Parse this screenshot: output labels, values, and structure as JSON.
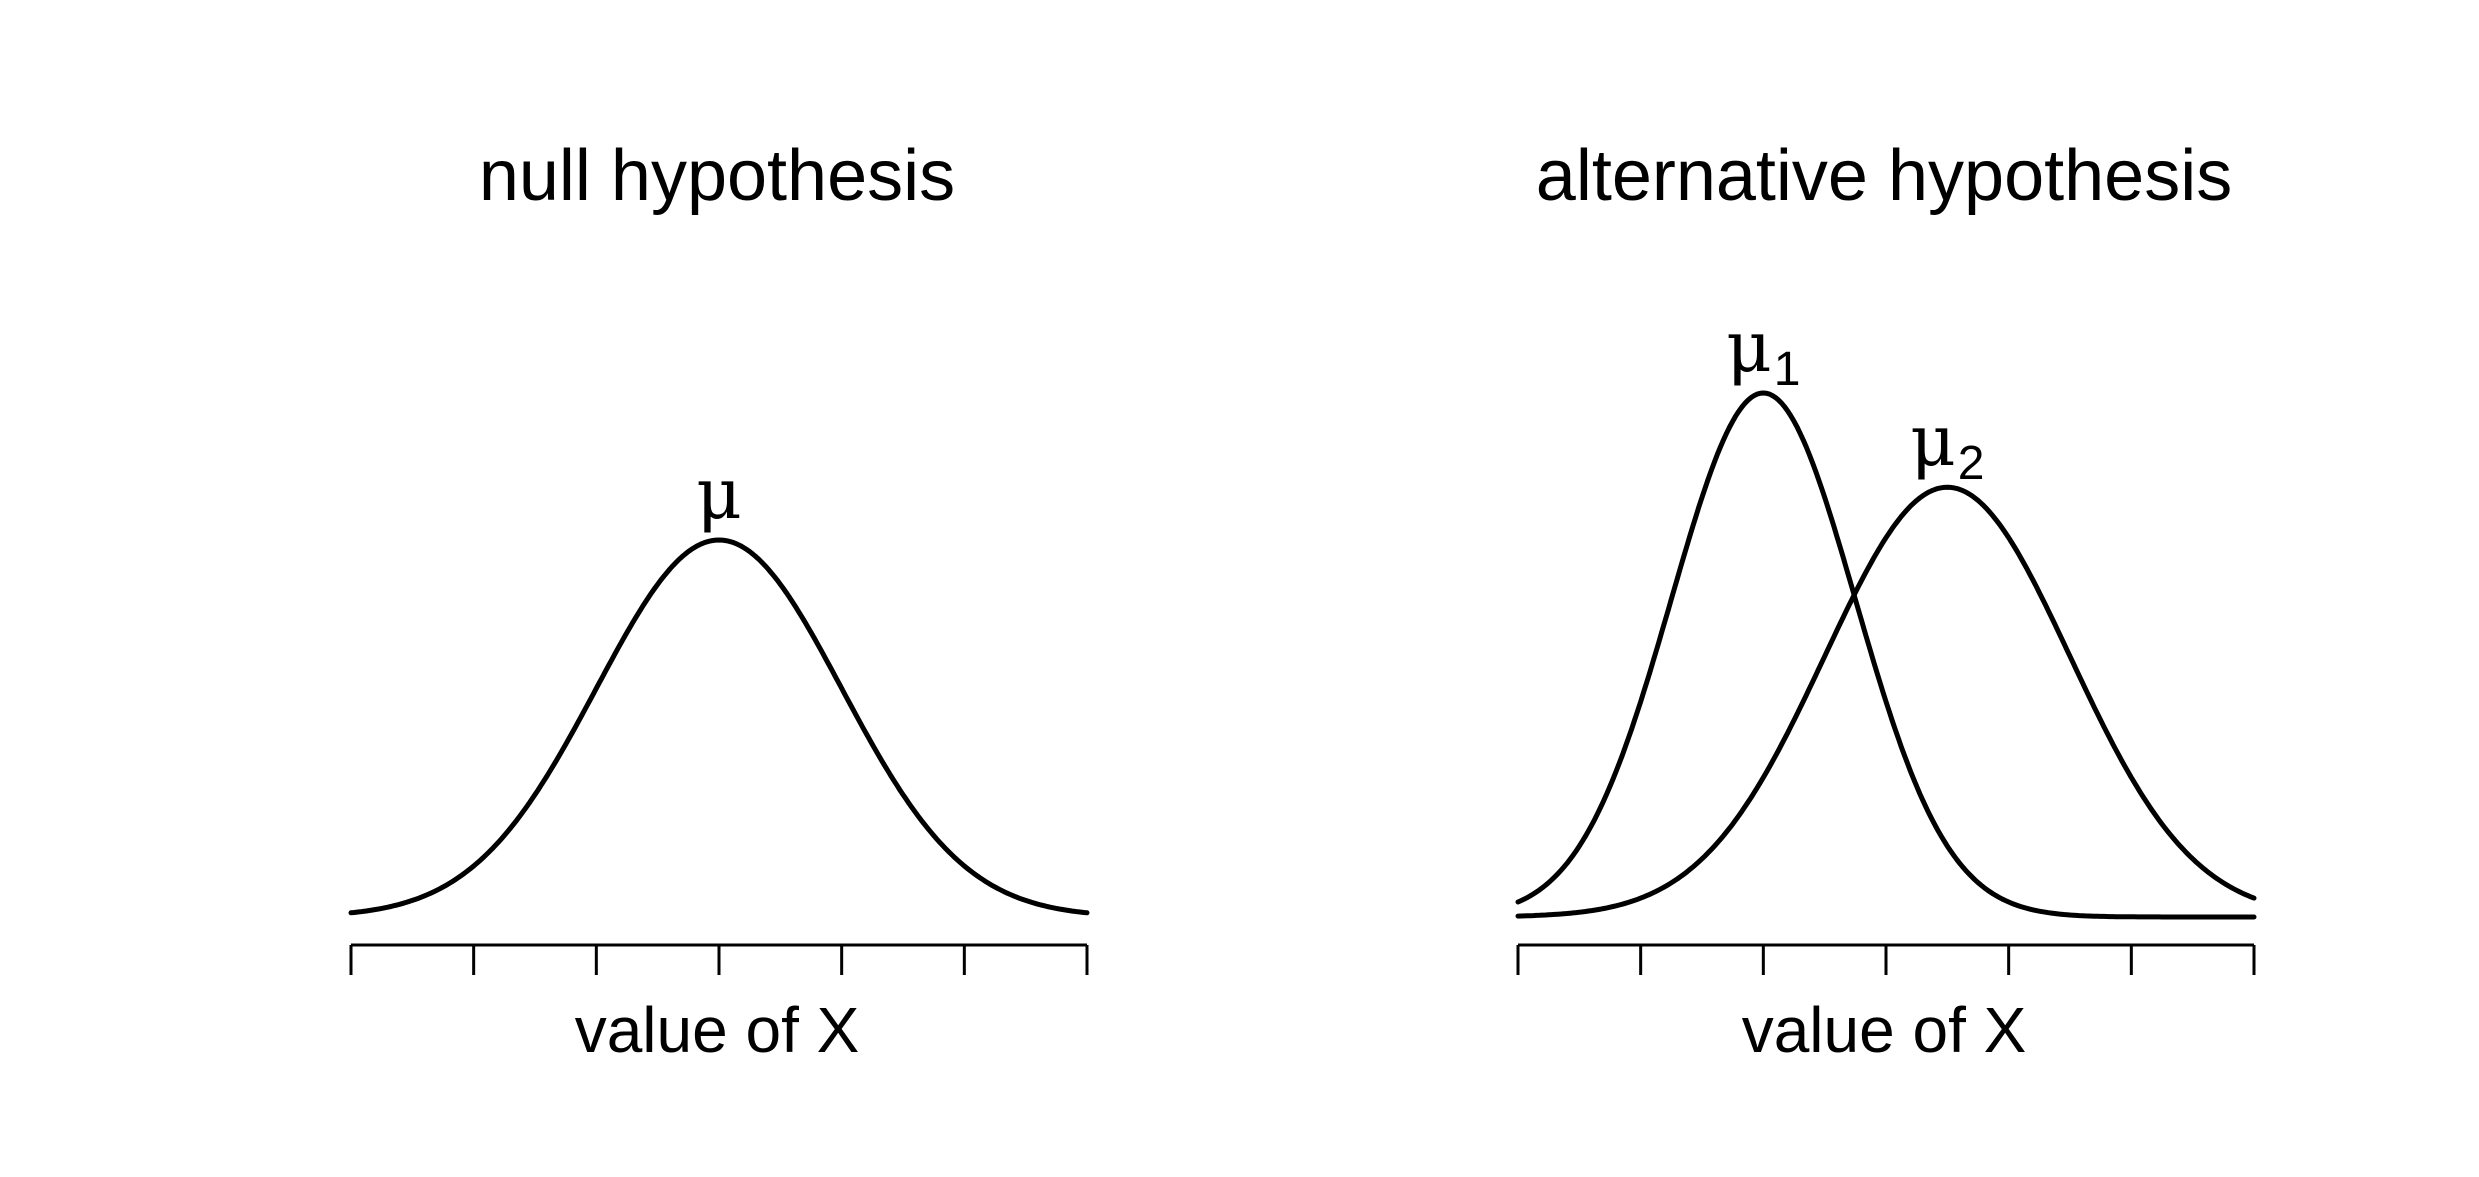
{
  "chart_data": [
    {
      "type": "line",
      "title": "null hypothesis",
      "xlabel": "value of X",
      "ylabel": "",
      "xlim": [
        -3,
        3
      ],
      "x_ticks": 7,
      "tick_labels": false,
      "series": [
        {
          "peak_label": "μ",
          "peak_subscript": "",
          "mean": 0,
          "sd": 1,
          "peak_height": 1.0
        }
      ]
    },
    {
      "type": "line",
      "title": "alternative hypothesis",
      "xlabel": "value of X",
      "ylabel": "",
      "xlim": [
        -3,
        3
      ],
      "x_ticks": 7,
      "tick_labels": false,
      "series": [
        {
          "peak_label": "μ",
          "peak_subscript": "1",
          "mean": -1,
          "sd": 0.75,
          "peak_height": 1.39
        },
        {
          "peak_label": "μ",
          "peak_subscript": "2",
          "mean": 0.5,
          "sd": 1,
          "peak_height": 1.14
        }
      ]
    }
  ]
}
